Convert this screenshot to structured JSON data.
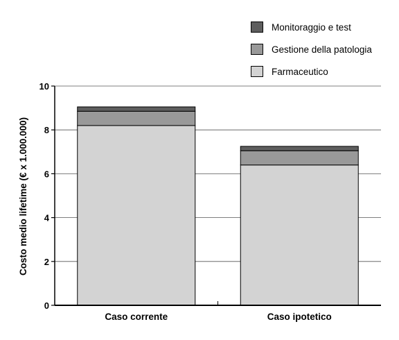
{
  "chart_data": {
    "type": "bar",
    "stacked": true,
    "categories": [
      "Caso corrente",
      "Caso ipotetico"
    ],
    "series": [
      {
        "name": "Farmaceutico",
        "values": [
          8.2,
          6.4
        ],
        "color": "#d3d3d3"
      },
      {
        "name": "Gestione della patologia",
        "values": [
          0.65,
          0.65
        ],
        "color": "#999999"
      },
      {
        "name": "Monitoraggio e test",
        "values": [
          0.2,
          0.2
        ],
        "color": "#5e5e5e"
      }
    ],
    "ylabel": "Costo medio lifetime (€ x 1.000.000)",
    "xlabel": "",
    "ylim": [
      0,
      10
    ],
    "yticks": [
      0,
      2,
      4,
      6,
      8,
      10
    ],
    "grid": true,
    "legend_position": "top-right"
  }
}
